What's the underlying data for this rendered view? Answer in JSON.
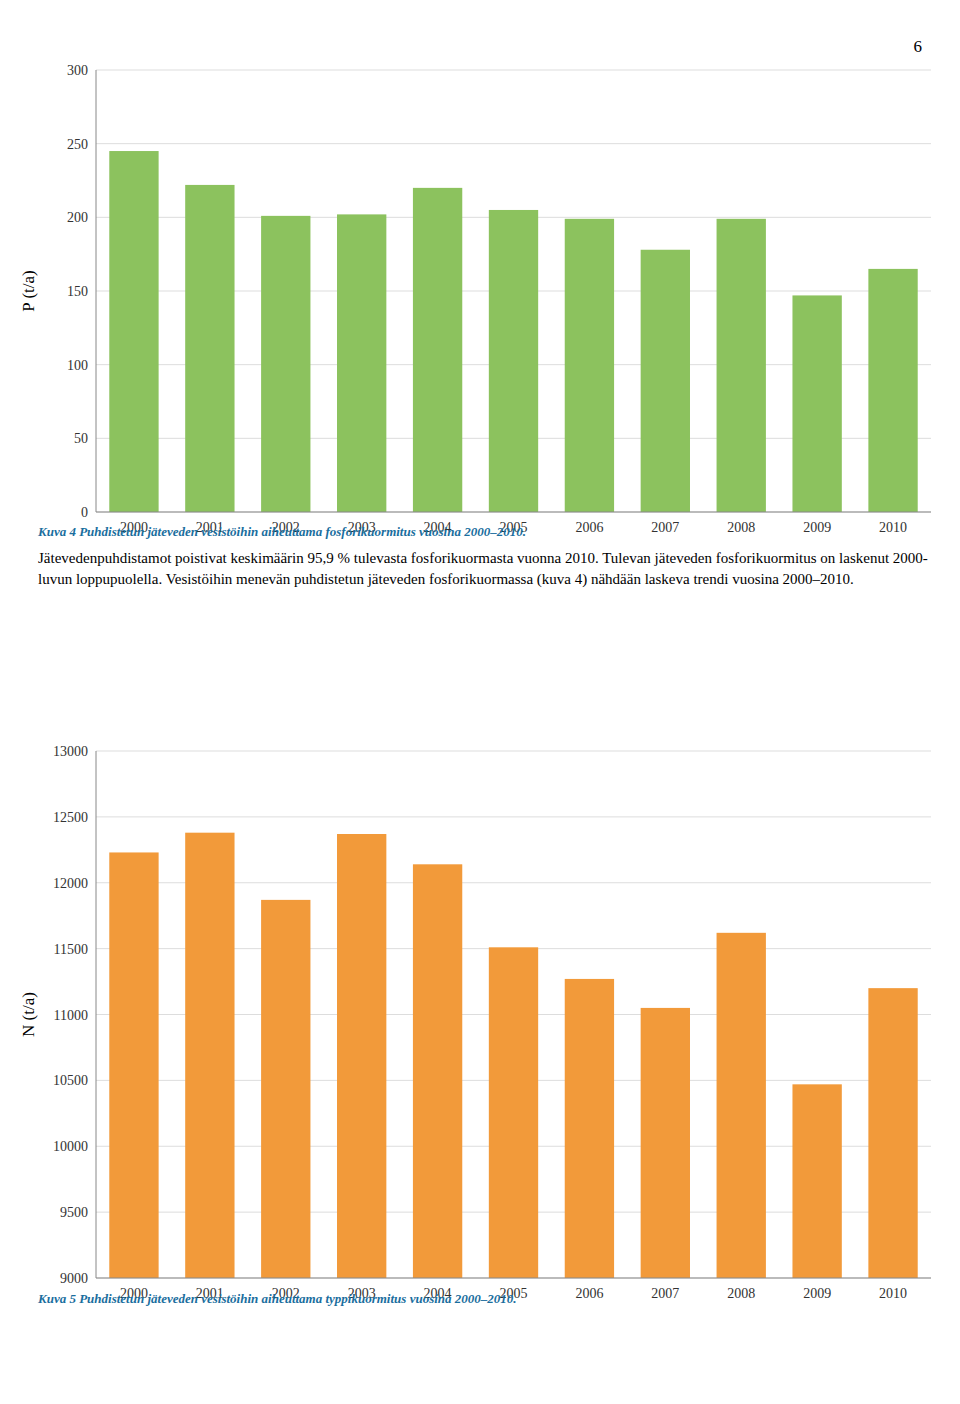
{
  "page_number": "6",
  "text": "Jätevedenpuhdistamot poistivat keskimäärin 95,9 % tulevasta fosforikuormasta vuonna 2010. Tulevan jäteveden fosforikuormitus on laskenut 2000-luvun loppupuolella. Vesistöihin menevän puhdistetun jäteveden fosforikuormassa (kuva 4) nähdään laskeva trendi vuosina 2000–2010.",
  "chart_data": [
    {
      "type": "bar",
      "caption": "Kuva 4 Puhdistetun jäteveden vesistöihin aiheuttama fosforikuormitus vuosina 2000–2010.",
      "y_label": "P (t/a)",
      "categories": [
        "2000",
        "2001",
        "2002",
        "2003",
        "2004",
        "2005",
        "2006",
        "2007",
        "2008",
        "2009",
        "2010"
      ],
      "values": [
        245,
        222,
        201,
        202,
        220,
        205,
        199,
        178,
        199,
        147,
        165
      ],
      "color": "#8cc25e",
      "ylim": [
        0,
        300
      ],
      "yticks": [
        0,
        50,
        100,
        150,
        200,
        250,
        300
      ],
      "grid": true
    },
    {
      "type": "bar",
      "caption": "Kuva 5 Puhdistetun jäteveden vesistöihin aiheuttama typpikuormitus vuosina 2000–2010.",
      "y_label": "N (t/a)",
      "categories": [
        "2000",
        "2001",
        "2002",
        "2003",
        "2004",
        "2005",
        "2006",
        "2007",
        "2008",
        "2009",
        "2010"
      ],
      "values": [
        12230,
        12380,
        11870,
        12370,
        12140,
        11510,
        11270,
        11050,
        11620,
        10470,
        11200
      ],
      "color": "#f29a3a",
      "ylim": [
        9000,
        13000
      ],
      "yticks": [
        9000,
        9500,
        10000,
        10500,
        11000,
        11500,
        12000,
        12500,
        13000
      ],
      "grid": true
    }
  ]
}
